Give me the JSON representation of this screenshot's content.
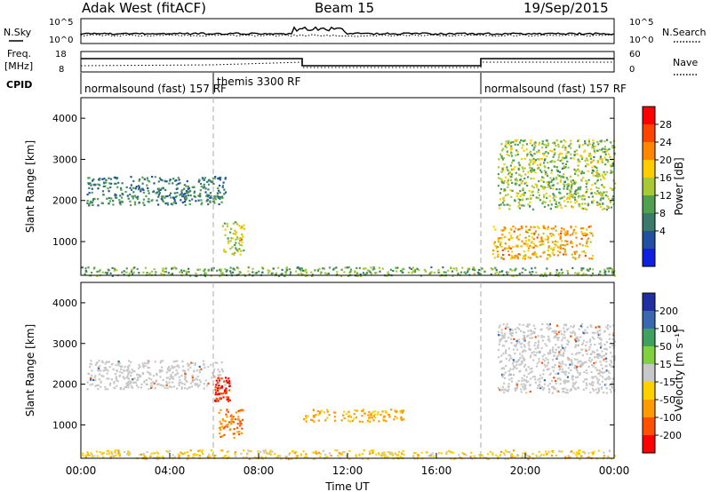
{
  "header": {
    "title": "Adak West (fitACF)",
    "beam": "Beam 15",
    "date": "19/Sep/2015"
  },
  "panels": {
    "nsky_label": "N.Sky",
    "nsearch_label": "N.Search",
    "nsky_ticks": [
      "10^5",
      "10^0"
    ],
    "nsearch_ticks": [
      "10^5",
      "10^0"
    ],
    "freq_label": "Freq.",
    "freq_unit": "[MHz]",
    "freq_ticks": [
      "18",
      "8"
    ],
    "nave_label": "Nave",
    "nave_ticks": [
      "60",
      "0"
    ],
    "cpid_label": "CPID",
    "cpid_segments": [
      "normalsound (fast) 157 RF",
      "themis 3300 RF",
      "normalsound (fast) 157 RF"
    ]
  },
  "colorbars": {
    "power": {
      "label": "Power [dB]",
      "ticks": [
        "28",
        "24",
        "20",
        "16",
        "12",
        "8",
        "4"
      ],
      "colors": [
        "#ff0000",
        "#ff4400",
        "#ff8800",
        "#ffcc00",
        "#a8c838",
        "#50a050",
        "#3a7a6a",
        "#2050a0",
        "#1020e0"
      ]
    },
    "velocity": {
      "label": "Velocity [m s⁻¹]",
      "ticks": [
        "200",
        "100",
        "50",
        "15",
        "-15",
        "-50",
        "-100",
        "-200"
      ],
      "colors": [
        "#2030a0",
        "#3868b0",
        "#40a060",
        "#80d040",
        "#c8c8c8",
        "#ffd000",
        "#ff9a00",
        "#ff5000",
        "#ff0000"
      ]
    }
  },
  "chart_data": [
    {
      "type": "heatmap",
      "name": "power",
      "xlabel": "",
      "ylabel": "Slant Range [km]",
      "xlim": [
        "00:00",
        "00:00"
      ],
      "ylim": [
        180,
        4500
      ],
      "yticks": [
        "4000",
        "3000",
        "2000",
        "1000"
      ],
      "echo_regions": [
        {
          "t_start": "00:15",
          "t_end": "06:30",
          "range_km": [
            1900,
            2600
          ],
          "power_db": 8
        },
        {
          "t_start": "06:20",
          "t_end": "07:20",
          "range_km": [
            700,
            1500
          ],
          "power_db": 16
        },
        {
          "t_start": "18:45",
          "t_end": "24:00",
          "range_km": [
            1800,
            3500
          ],
          "power_db": 14
        },
        {
          "t_start": "18:30",
          "t_end": "23:00",
          "range_km": [
            600,
            1400
          ],
          "power_db": 20
        },
        {
          "t_start": "00:00",
          "t_end": "24:00",
          "range_km": [
            180,
            400
          ],
          "power_db": 12
        }
      ]
    },
    {
      "type": "heatmap",
      "name": "velocity",
      "xlabel": "Time UT",
      "ylabel": "Slant Range [km]",
      "xlim": [
        "00:00",
        "00:00"
      ],
      "ylim": [
        180,
        4500
      ],
      "xticks": [
        "00:00",
        "04:00",
        "08:00",
        "12:00",
        "16:00",
        "20:00",
        "00:00"
      ],
      "yticks": [
        "4000",
        "3000",
        "2000",
        "1000"
      ],
      "echo_regions": [
        {
          "t_start": "00:15",
          "t_end": "06:30",
          "range_km": [
            1900,
            2600
          ],
          "velocity_ms": 0
        },
        {
          "t_start": "06:00",
          "t_end": "06:40",
          "range_km": [
            1600,
            2200
          ],
          "velocity_ms": -200
        },
        {
          "t_start": "06:10",
          "t_end": "07:20",
          "range_km": [
            700,
            1400
          ],
          "velocity_ms": -100
        },
        {
          "t_start": "10:00",
          "t_end": "14:30",
          "range_km": [
            1100,
            1400
          ],
          "velocity_ms": -60
        },
        {
          "t_start": "18:45",
          "t_end": "24:00",
          "range_km": [
            1800,
            3500
          ],
          "velocity_ms": 0
        },
        {
          "t_start": "00:00",
          "t_end": "24:00",
          "range_km": [
            180,
            400
          ],
          "velocity_ms": -30
        }
      ]
    }
  ]
}
